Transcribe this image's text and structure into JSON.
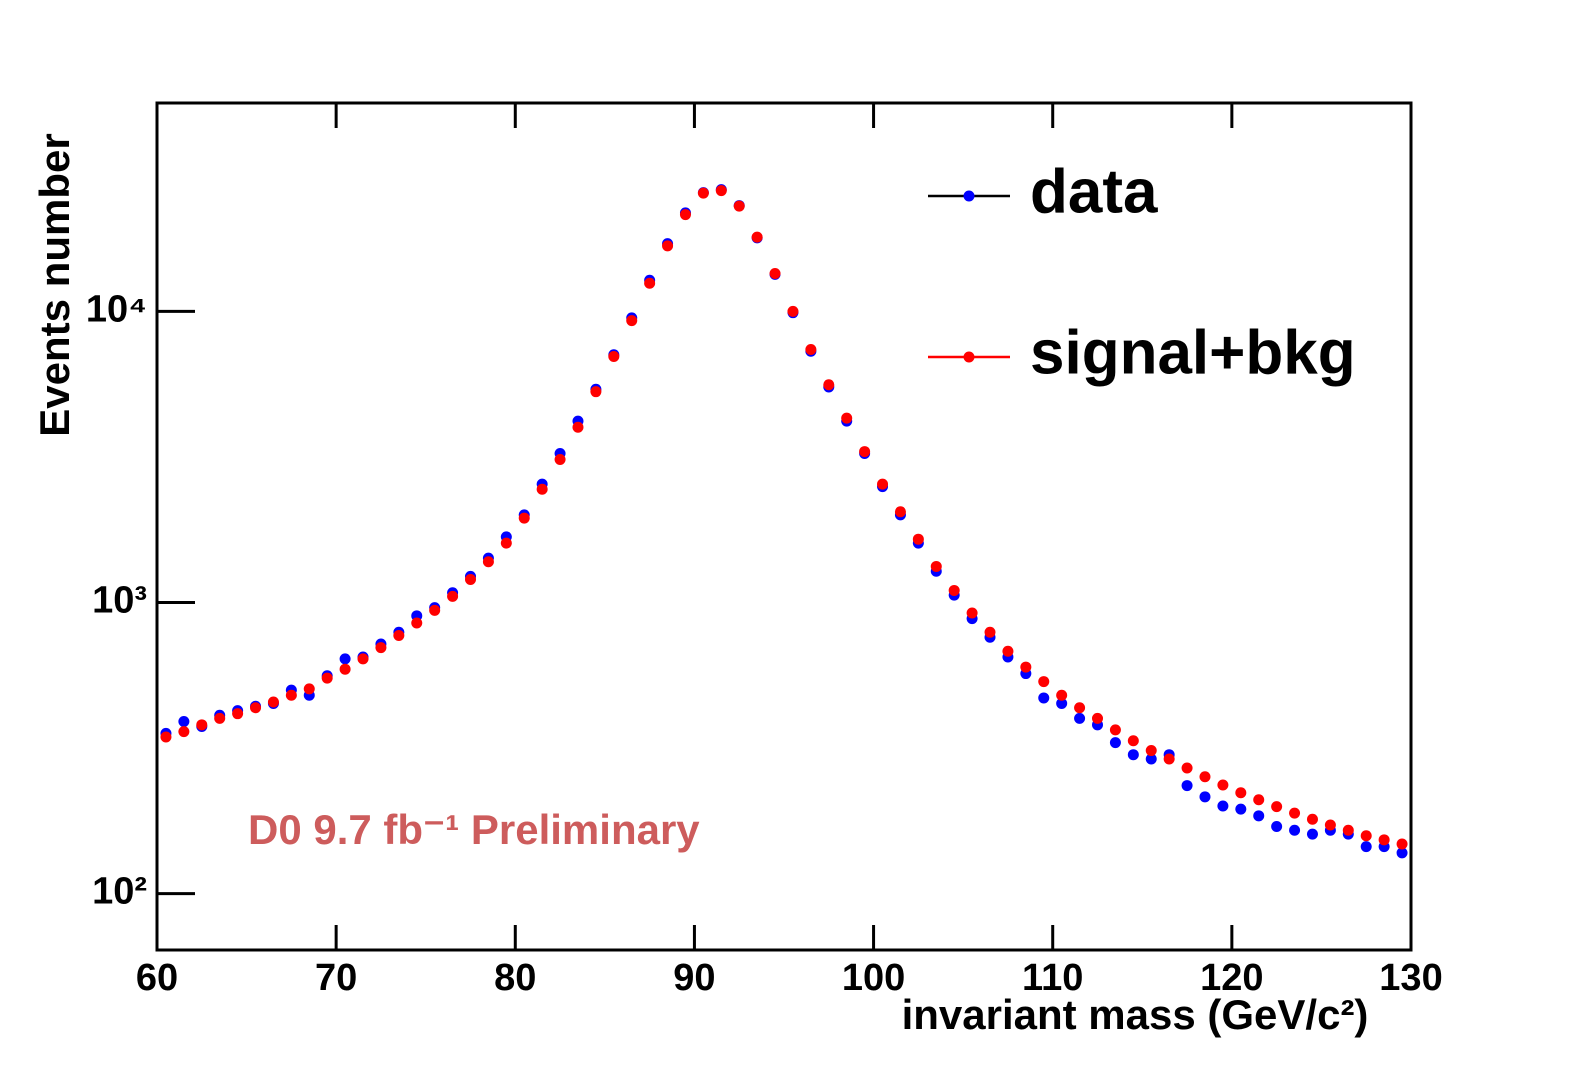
{
  "chart_data": {
    "type": "scatter",
    "xlabel": "invariant mass (GeV/c²)",
    "ylabel": "Events number",
    "annotation": "D0 9.7 fb⁻¹ Preliminary",
    "log_y": true,
    "legend": "upper right",
    "xlim": [
      60,
      130
    ],
    "xticks": [
      60,
      70,
      80,
      90,
      100,
      110,
      120,
      130
    ],
    "ylim": [
      64,
      52000
    ],
    "yticks": [
      {
        "value": 100,
        "label": "10²"
      },
      {
        "value": 1000,
        "label": "10³"
      },
      {
        "value": 10000,
        "label": "10⁴"
      }
    ],
    "x": [
      60.5,
      61.5,
      62.5,
      63.5,
      64.5,
      65.5,
      66.5,
      67.5,
      68.5,
      69.5,
      70.5,
      71.5,
      72.5,
      73.5,
      74.5,
      75.5,
      76.5,
      77.5,
      78.5,
      79.5,
      80.5,
      81.5,
      82.5,
      83.5,
      84.5,
      85.5,
      86.5,
      87.5,
      88.5,
      89.5,
      90.5,
      91.5,
      92.5,
      93.5,
      94.5,
      95.5,
      96.5,
      97.5,
      98.5,
      99.5,
      100.5,
      101.5,
      102.5,
      103.5,
      104.5,
      105.5,
      106.5,
      107.5,
      108.5,
      109.5,
      110.5,
      111.5,
      112.5,
      113.5,
      114.5,
      115.5,
      116.5,
      117.5,
      118.5,
      119.5,
      120.5,
      121.5,
      122.5,
      123.5,
      124.5,
      125.5,
      126.5,
      127.5,
      128.5,
      129.5
    ],
    "series": [
      {
        "name": "data",
        "color": "#0000ff",
        "values": [
          355,
          390,
          375,
          410,
          425,
          440,
          450,
          500,
          480,
          560,
          640,
          650,
          720,
          790,
          900,
          960,
          1080,
          1230,
          1420,
          1680,
          2000,
          2550,
          3250,
          4200,
          5400,
          7100,
          9500,
          12800,
          17100,
          21800,
          25600,
          26200,
          23100,
          17900,
          13400,
          9900,
          7300,
          5500,
          4200,
          3250,
          2500,
          2000,
          1600,
          1280,
          1060,
          880,
          760,
          650,
          570,
          470,
          450,
          400,
          380,
          330,
          300,
          290,
          300,
          235,
          215,
          200,
          195,
          185,
          170,
          165,
          160,
          165,
          160,
          145,
          145,
          138
        ]
      },
      {
        "name": "signal+bkg",
        "color": "#ff0000",
        "values": [
          345,
          360,
          380,
          400,
          415,
          435,
          455,
          480,
          505,
          550,
          590,
          640,
          700,
          770,
          850,
          940,
          1050,
          1200,
          1380,
          1600,
          1950,
          2450,
          3100,
          4000,
          5300,
          7000,
          9300,
          12500,
          16800,
          21500,
          25500,
          26000,
          23000,
          18000,
          13500,
          10000,
          7400,
          5600,
          4300,
          3300,
          2550,
          2050,
          1650,
          1330,
          1100,
          920,
          790,
          680,
          600,
          535,
          480,
          435,
          400,
          365,
          335,
          310,
          290,
          270,
          252,
          236,
          222,
          210,
          199,
          189,
          180,
          172,
          165,
          158,
          153,
          148
        ]
      }
    ]
  }
}
